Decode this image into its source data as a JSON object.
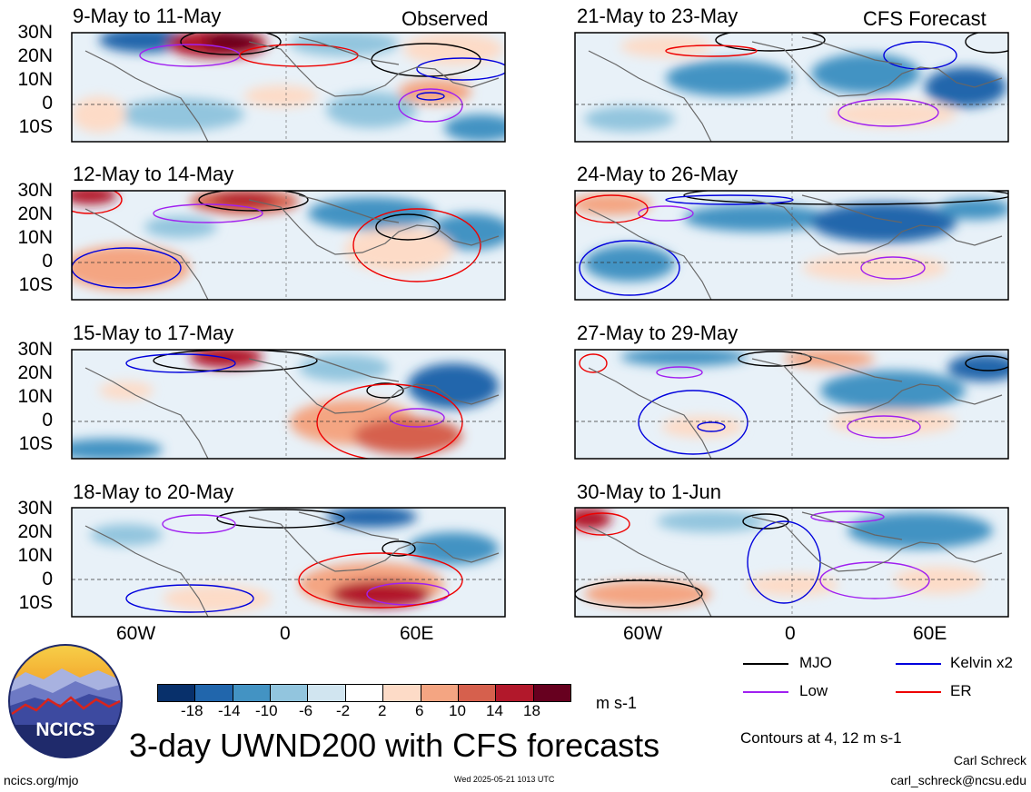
{
  "header": {
    "left_tag": "Observed",
    "right_tag": "CFS Forecast"
  },
  "panels_left": [
    {
      "title": "9-May to 11-May"
    },
    {
      "title": "12-May to 14-May"
    },
    {
      "title": "15-May to 17-May"
    },
    {
      "title": "18-May to 20-May"
    }
  ],
  "panels_right": [
    {
      "title": "21-May to 23-May"
    },
    {
      "title": "24-May to 26-May"
    },
    {
      "title": "27-May to 29-May"
    },
    {
      "title": "30-May to 1-Jun"
    }
  ],
  "lat_labels": [
    "30N",
    "20N",
    "10N",
    "0",
    "10S"
  ],
  "lon_labels": [
    "60W",
    "0",
    "60E"
  ],
  "colorbar": {
    "ticks": [
      "-18",
      "-14",
      "-10",
      "-6",
      "-2",
      "2",
      "6",
      "10",
      "14",
      "18"
    ],
    "colors": [
      "#08306b",
      "#2166ac",
      "#4393c3",
      "#92c5de",
      "#d1e5f0",
      "#ffffff",
      "#fddbc7",
      "#f4a582",
      "#d6604d",
      "#b2182b",
      "#67001f"
    ],
    "units": "m s-1"
  },
  "legend": {
    "mjo": {
      "label": "MJO",
      "color": "#000000"
    },
    "kelvin": {
      "label": "Kelvin x2",
      "color": "#0000dd"
    },
    "low": {
      "label": "Low",
      "color": "#a020f0"
    },
    "er": {
      "label": "ER",
      "color": "#ee0000"
    },
    "contours_note": "Contours at 4, 12 m s-1"
  },
  "logo": {
    "text": "NCICS"
  },
  "main_title": "3-day UWND200 with CFS forecasts",
  "footer": {
    "url": "ncics.org/mjo",
    "timestamp": "Wed 2025-05-21 1013 UTC",
    "author": "Carl Schreck",
    "email": "carl_schreck@ncsu.edu"
  }
}
